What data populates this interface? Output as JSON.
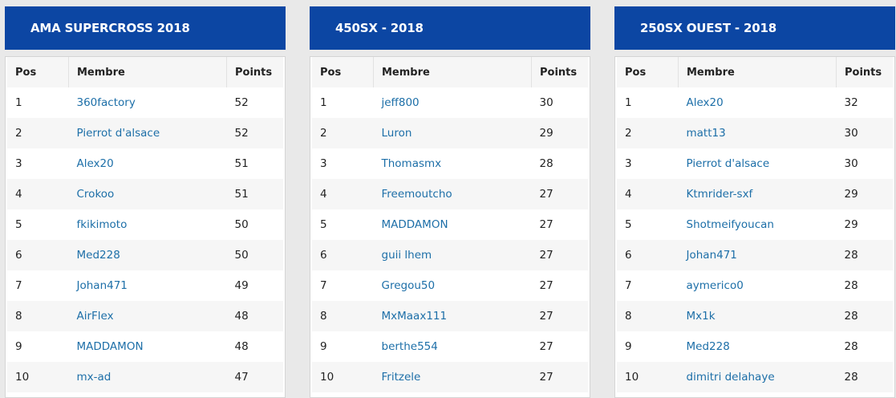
{
  "columns": {
    "pos": "Pos",
    "member": "Membre",
    "points": "Points"
  },
  "standings": [
    {
      "title": "AMA SUPERCROSS 2018",
      "rows": [
        {
          "pos": "1",
          "member": "360factory",
          "points": "52"
        },
        {
          "pos": "2",
          "member": "Pierrot d'alsace",
          "points": "52"
        },
        {
          "pos": "3",
          "member": "Alex20",
          "points": "51"
        },
        {
          "pos": "4",
          "member": "Crokoo",
          "points": "51"
        },
        {
          "pos": "5",
          "member": "fkikimoto",
          "points": "50"
        },
        {
          "pos": "6",
          "member": "Med228",
          "points": "50"
        },
        {
          "pos": "7",
          "member": "Johan471",
          "points": "49"
        },
        {
          "pos": "8",
          "member": "AirFlex",
          "points": "48"
        },
        {
          "pos": "9",
          "member": "MADDAMON",
          "points": "48"
        },
        {
          "pos": "10",
          "member": "mx-ad",
          "points": "47"
        }
      ]
    },
    {
      "title": "450SX - 2018",
      "rows": [
        {
          "pos": "1",
          "member": "jeff800",
          "points": "30"
        },
        {
          "pos": "2",
          "member": "Luron",
          "points": "29"
        },
        {
          "pos": "3",
          "member": "Thomasmx",
          "points": "28"
        },
        {
          "pos": "4",
          "member": "Freemoutcho",
          "points": "27"
        },
        {
          "pos": "5",
          "member": "MADDAMON",
          "points": "27"
        },
        {
          "pos": "6",
          "member": "guii lhem",
          "points": "27"
        },
        {
          "pos": "7",
          "member": "Gregou50",
          "points": "27"
        },
        {
          "pos": "8",
          "member": "MxMaax111",
          "points": "27"
        },
        {
          "pos": "9",
          "member": "berthe554",
          "points": "27"
        },
        {
          "pos": "10",
          "member": "Fritzele",
          "points": "27"
        }
      ]
    },
    {
      "title": "250SX OUEST - 2018",
      "rows": [
        {
          "pos": "1",
          "member": "Alex20",
          "points": "32"
        },
        {
          "pos": "2",
          "member": "matt13",
          "points": "30"
        },
        {
          "pos": "3",
          "member": "Pierrot d'alsace",
          "points": "30"
        },
        {
          "pos": "4",
          "member": "Ktmrider-sxf",
          "points": "29"
        },
        {
          "pos": "5",
          "member": "Shotmeifyoucan",
          "points": "29"
        },
        {
          "pos": "6",
          "member": "Johan471",
          "points": "28"
        },
        {
          "pos": "7",
          "member": "aymerico0",
          "points": "28"
        },
        {
          "pos": "8",
          "member": "Mx1k",
          "points": "28"
        },
        {
          "pos": "9",
          "member": "Med228",
          "points": "28"
        },
        {
          "pos": "10",
          "member": "dimitri delahaye",
          "points": "28"
        }
      ]
    }
  ]
}
